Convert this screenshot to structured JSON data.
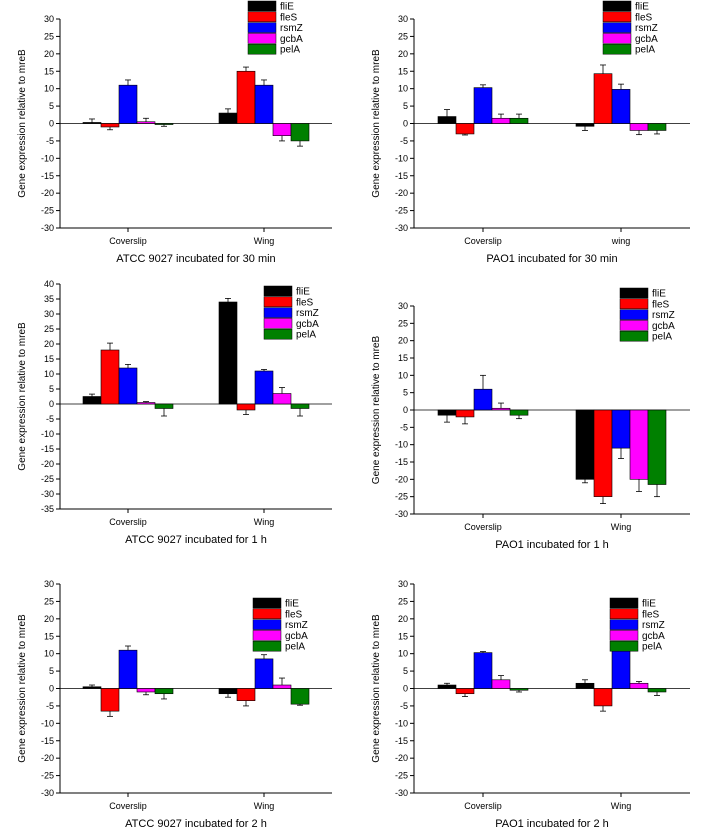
{
  "chart_data": [
    {
      "type": "bar",
      "title": "ATCC 9027 incubated for 30 min",
      "ylabel": "Gene expression relative to mreB",
      "ylim": [
        -30,
        30
      ],
      "ytick_step": 5,
      "categories": [
        "Coverslip",
        "Wing"
      ],
      "legend": "top-right",
      "series": [
        {
          "name": "fliE",
          "color": "#000000",
          "values": [
            0.3,
            3.0
          ],
          "errors": [
            1.0,
            1.2
          ]
        },
        {
          "name": "fleS",
          "color": "#ff0000",
          "values": [
            -1.0,
            15.0
          ],
          "errors": [
            0.8,
            1.2
          ]
        },
        {
          "name": "rsmZ",
          "color": "#0000ff",
          "values": [
            11.0,
            11.0
          ],
          "errors": [
            1.5,
            1.5
          ]
        },
        {
          "name": "gcbA",
          "color": "#ff00ff",
          "values": [
            0.5,
            -3.5
          ],
          "errors": [
            1.0,
            1.5
          ]
        },
        {
          "name": "pelA",
          "color": "#008000",
          "values": [
            -0.3,
            -5.0
          ],
          "errors": [
            0.5,
            1.5
          ]
        }
      ]
    },
    {
      "type": "bar",
      "title": "PAO1 incubated for 30 min",
      "ylabel": "Gene expression relative to mreB",
      "ylim": [
        -30,
        30
      ],
      "ytick_step": 5,
      "categories": [
        "Coverslip",
        "wing"
      ],
      "legend": "top-right",
      "series": [
        {
          "name": "fliE",
          "color": "#000000",
          "values": [
            2.0,
            -0.8
          ],
          "errors": [
            2.0,
            1.2
          ]
        },
        {
          "name": "fleS",
          "color": "#ff0000",
          "values": [
            -3.0,
            14.3
          ],
          "errors": [
            0.3,
            2.5
          ]
        },
        {
          "name": "rsmZ",
          "color": "#0000ff",
          "values": [
            10.3,
            9.8
          ],
          "errors": [
            0.8,
            1.5
          ]
        },
        {
          "name": "gcbA",
          "color": "#ff00ff",
          "values": [
            1.5,
            -2.0
          ],
          "errors": [
            1.2,
            1.2
          ]
        },
        {
          "name": "pelA",
          "color": "#008000",
          "values": [
            1.5,
            -2.0
          ],
          "errors": [
            1.2,
            1.0
          ]
        }
      ]
    },
    {
      "type": "bar",
      "title": "ATCC 9027 incubated for 1 h",
      "ylabel": "Gene expression relative to mreB",
      "ylim": [
        -35,
        40
      ],
      "ytick_step": 5,
      "categories": [
        "Coverslip",
        "Wing"
      ],
      "legend": "top-right",
      "series": [
        {
          "name": "fliE",
          "color": "#000000",
          "values": [
            2.5,
            34.0
          ],
          "errors": [
            0.8,
            1.2
          ]
        },
        {
          "name": "fleS",
          "color": "#ff0000",
          "values": [
            18.0,
            -2.0
          ],
          "errors": [
            2.3,
            1.5
          ]
        },
        {
          "name": "rsmZ",
          "color": "#0000ff",
          "values": [
            12.0,
            11.0
          ],
          "errors": [
            1.2,
            0.5
          ]
        },
        {
          "name": "gcbA",
          "color": "#ff00ff",
          "values": [
            0.5,
            3.5
          ],
          "errors": [
            0.3,
            2.0
          ]
        },
        {
          "name": "pelA",
          "color": "#008000",
          "values": [
            -1.5,
            -1.5
          ],
          "errors": [
            2.5,
            2.5
          ]
        }
      ]
    },
    {
      "type": "bar",
      "title": "PAO1 incubated for 1 h",
      "ylabel": "Gene expression relative to mreB",
      "ylim": [
        -30,
        30
      ],
      "ytick_step": 5,
      "categories": [
        "Coverslip",
        "Wing"
      ],
      "legend": "top-right",
      "series": [
        {
          "name": "fliE",
          "color": "#000000",
          "values": [
            -1.5,
            -20.0
          ],
          "errors": [
            2.0,
            1.0
          ]
        },
        {
          "name": "fleS",
          "color": "#ff0000",
          "values": [
            -2.0,
            -25.0
          ],
          "errors": [
            2.0,
            2.0
          ]
        },
        {
          "name": "rsmZ",
          "color": "#0000ff",
          "values": [
            6.0,
            -11.0
          ],
          "errors": [
            4.0,
            3.0
          ]
        },
        {
          "name": "gcbA",
          "color": "#ff00ff",
          "values": [
            0.5,
            -20.0
          ],
          "errors": [
            1.5,
            3.5
          ]
        },
        {
          "name": "pelA",
          "color": "#008000",
          "values": [
            -1.5,
            -21.5
          ],
          "errors": [
            1.0,
            3.5
          ]
        }
      ]
    },
    {
      "type": "bar",
      "title": "ATCC 9027 incubated for 2 h",
      "ylabel": "Gene expression relative to mreB",
      "ylim": [
        -30,
        30
      ],
      "ytick_step": 5,
      "categories": [
        "Coverslip",
        "Wing"
      ],
      "legend": "top-right",
      "series": [
        {
          "name": "fliE",
          "color": "#000000",
          "values": [
            0.5,
            -1.5
          ],
          "errors": [
            0.5,
            1.0
          ]
        },
        {
          "name": "fleS",
          "color": "#ff0000",
          "values": [
            -6.5,
            -3.5
          ],
          "errors": [
            1.5,
            1.5
          ]
        },
        {
          "name": "rsmZ",
          "color": "#0000ff",
          "values": [
            11.0,
            8.5
          ],
          "errors": [
            1.2,
            1.2
          ]
        },
        {
          "name": "gcbA",
          "color": "#ff00ff",
          "values": [
            -1.0,
            1.0
          ],
          "errors": [
            0.8,
            2.0
          ]
        },
        {
          "name": "pelA",
          "color": "#008000",
          "values": [
            -1.5,
            -4.5
          ],
          "errors": [
            1.5,
            0.3
          ]
        }
      ]
    },
    {
      "type": "bar",
      "title": "PAO1 incubated for 2 h",
      "ylabel": "Gene expression relative to mreB",
      "ylim": [
        -30,
        30
      ],
      "ytick_step": 5,
      "categories": [
        "Coverslip",
        "Wing"
      ],
      "legend": "top-right",
      "series": [
        {
          "name": "fliE",
          "color": "#000000",
          "values": [
            1.0,
            1.5
          ],
          "errors": [
            0.5,
            1.0
          ]
        },
        {
          "name": "fleS",
          "color": "#ff0000",
          "values": [
            -1.5,
            -5.0
          ],
          "errors": [
            0.8,
            1.5
          ]
        },
        {
          "name": "rsmZ",
          "color": "#0000ff",
          "values": [
            10.3,
            12.0
          ],
          "errors": [
            0.3,
            0.5
          ]
        },
        {
          "name": "gcbA",
          "color": "#ff00ff",
          "values": [
            2.5,
            1.5
          ],
          "errors": [
            1.2,
            0.5
          ]
        },
        {
          "name": "pelA",
          "color": "#008000",
          "values": [
            -0.5,
            -1.0
          ],
          "errors": [
            0.5,
            1.0
          ]
        }
      ]
    }
  ]
}
